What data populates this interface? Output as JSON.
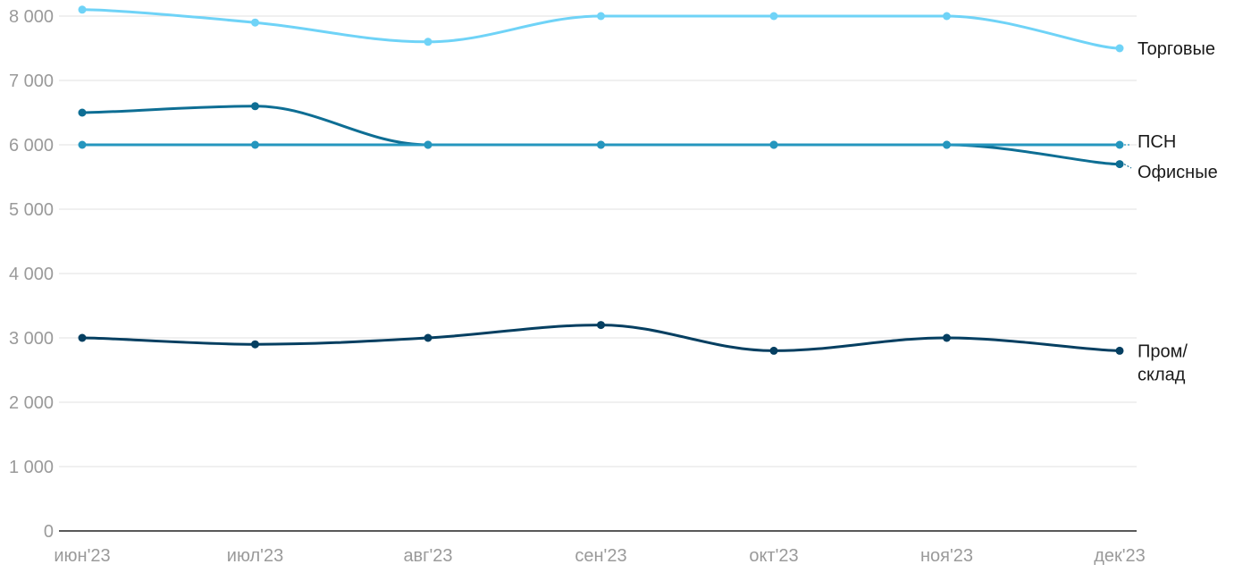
{
  "chart_data": {
    "type": "line",
    "title": "",
    "xlabel": "",
    "ylabel": "",
    "categories": [
      "июн'23",
      "июл'23",
      "авг'23",
      "сен'23",
      "окт'23",
      "ноя'23",
      "дек'23"
    ],
    "ylim": [
      0,
      8000
    ],
    "yticks": [
      0,
      1000,
      2000,
      3000,
      4000,
      5000,
      6000,
      7000,
      8000
    ],
    "ytick_labels": [
      "0",
      "1 000",
      "2 000",
      "3 000",
      "4 000",
      "5 000",
      "6 000",
      "7 000",
      "8 000"
    ],
    "grid": true,
    "legend": "inline-right",
    "series": [
      {
        "name": "Торговые",
        "label_lines": [
          "Торговые"
        ],
        "color": "#6fd3f7",
        "values": [
          8100,
          7900,
          7600,
          8000,
          8000,
          8000,
          7500
        ]
      },
      {
        "name": "ПСН",
        "label_lines": [
          "ПСН"
        ],
        "color": "#2596be",
        "values": [
          6000,
          6000,
          6000,
          6000,
          6000,
          6000,
          6000
        ]
      },
      {
        "name": "Офисные",
        "label_lines": [
          "Офисные"
        ],
        "color": "#0e6e94",
        "values": [
          6500,
          6600,
          6000,
          6000,
          6000,
          6000,
          5700
        ]
      },
      {
        "name": "Пром/ склад",
        "label_lines": [
          "Пром/",
          "склад"
        ],
        "color": "#053f61",
        "values": [
          3000,
          2900,
          3000,
          3200,
          2800,
          3000,
          2800
        ]
      }
    ]
  }
}
